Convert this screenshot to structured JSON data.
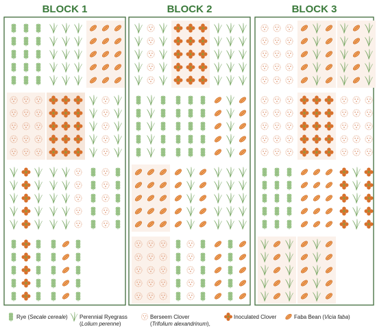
{
  "blocks": [
    {
      "title": "BLOCK 1"
    },
    {
      "title": "BLOCK 2"
    },
    {
      "title": "BLOCK 3"
    }
  ],
  "legend": [
    {
      "lines": [
        [
          "Rye (",
          "Secale cereale",
          ")"
        ]
      ]
    },
    {
      "lines": [
        [
          "Perennial Ryegrass"
        ],
        [
          "(",
          "Lolium perenne",
          ")"
        ]
      ]
    },
    {
      "lines": [
        [
          "Berseem Clover"
        ],
        [
          "(",
          "Trifolium alexandrinum",
          "),"
        ]
      ]
    },
    {
      "lines": [
        [
          "Inoculated Clover"
        ]
      ]
    },
    {
      "lines": [
        [
          "Faba Bean (",
          "Vicia faba",
          ")"
        ]
      ]
    }
  ]
}
